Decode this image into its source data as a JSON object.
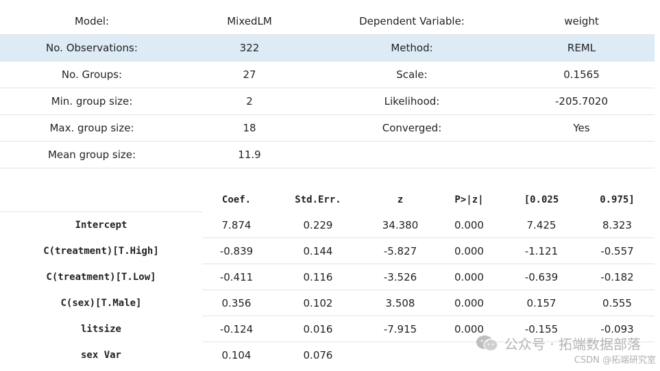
{
  "summary": {
    "rows": [
      {
        "k1": "Model:",
        "v1": "MixedLM",
        "k2": "Dependent Variable:",
        "v2": "weight"
      },
      {
        "k1": "No. Observations:",
        "v1": "322",
        "k2": "Method:",
        "v2": "REML"
      },
      {
        "k1": "No. Groups:",
        "v1": "27",
        "k2": "Scale:",
        "v2": "0.1565"
      },
      {
        "k1": "Min. group size:",
        "v1": "2",
        "k2": "Likelihood:",
        "v2": "-205.7020"
      },
      {
        "k1": "Max. group size:",
        "v1": "18",
        "k2": "Converged:",
        "v2": "Yes"
      },
      {
        "k1": "Mean group size:",
        "v1": "11.9",
        "k2": "",
        "v2": ""
      }
    ],
    "highlight_color": "#dcebf5"
  },
  "coef": {
    "headers": [
      "Coef.",
      "Std.Err.",
      "z",
      "P>|z|",
      "[0.025",
      "0.975]"
    ],
    "rows": [
      {
        "label": "Intercept",
        "values": [
          "7.874",
          "0.229",
          "34.380",
          "0.000",
          "7.425",
          "8.323"
        ]
      },
      {
        "label": "C(treatment)[T.High]",
        "values": [
          "-0.839",
          "0.144",
          "-5.827",
          "0.000",
          "-1.121",
          "-0.557"
        ]
      },
      {
        "label": "C(treatment)[T.Low]",
        "values": [
          "-0.411",
          "0.116",
          "-3.526",
          "0.000",
          "-0.639",
          "-0.182"
        ]
      },
      {
        "label": "C(sex)[T.Male]",
        "values": [
          "0.356",
          "0.102",
          "3.508",
          "0.000",
          "0.157",
          "0.555"
        ]
      },
      {
        "label": "litsize",
        "values": [
          "-0.124",
          "0.016",
          "-7.915",
          "0.000",
          "-0.155",
          "-0.093"
        ]
      },
      {
        "label": "sex Var",
        "values": [
          "0.104",
          "0.076",
          "",
          "",
          "",
          ""
        ]
      }
    ]
  },
  "watermark": {
    "line1": "公众号 · 拓端数据部落",
    "line2": "CSDN @拓端研究室",
    "icon": "wechat-icon"
  }
}
